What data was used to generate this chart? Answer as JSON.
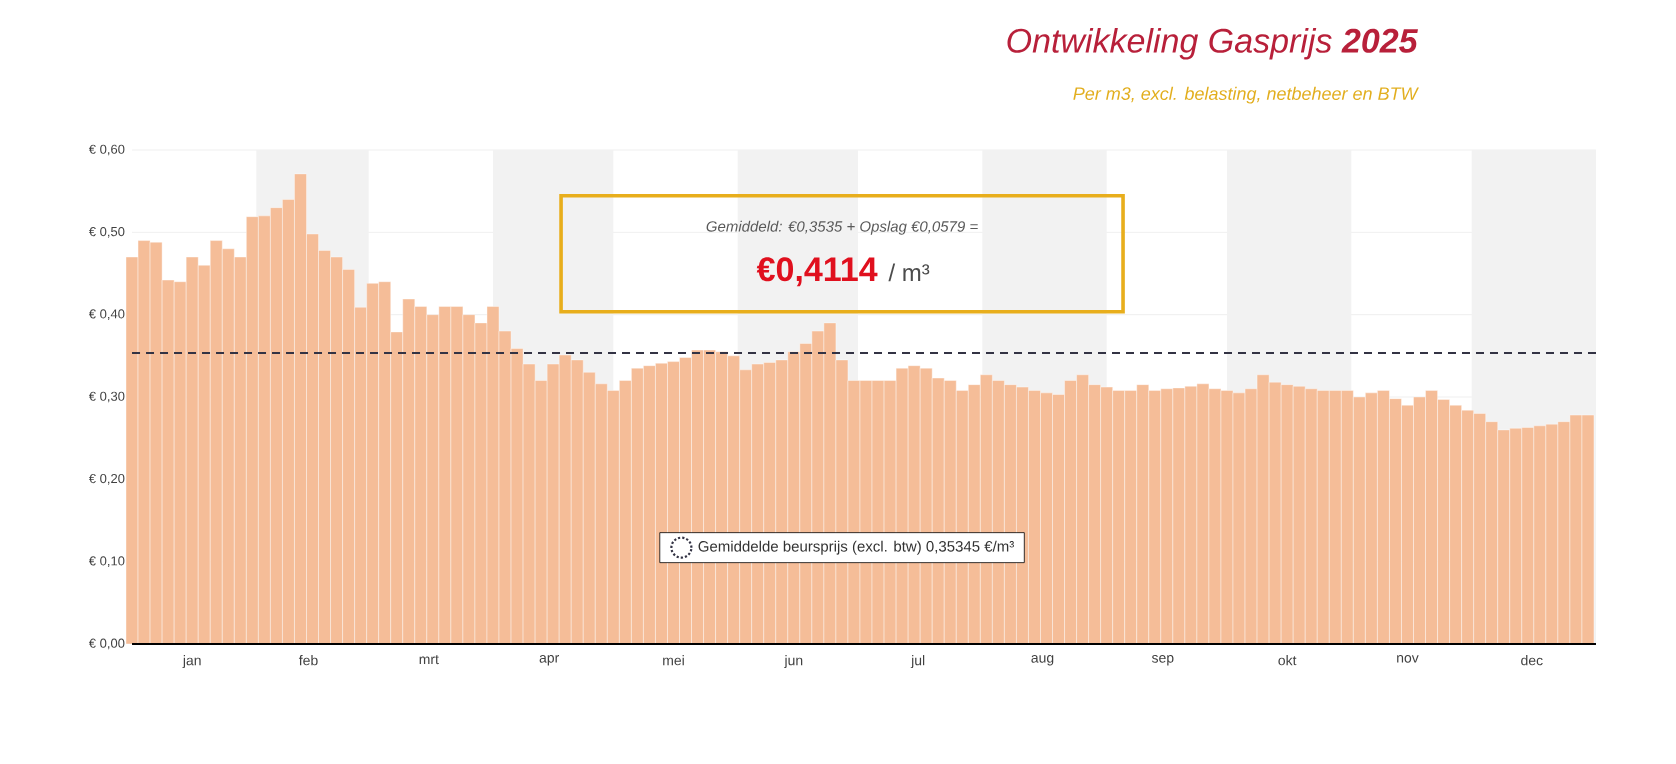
{
  "chart_data": {
    "type": "bar",
    "title": "Ontwikkeling Gasprijs **2025**",
    "subtitle": "Per m3, excl. belasting, netbeheer en BTW",
    "x": [
      "2025-01-01",
      "2025-01-04",
      "2025-01-07",
      "2025-01-10",
      "2025-01-13",
      "2025-01-16",
      "2025-01-19",
      "2025-01-22",
      "2025-01-25",
      "2025-01-28",
      "2025-01-31",
      "2025-02-03",
      "2025-02-06",
      "2025-02-09",
      "2025-02-12",
      "2025-02-15",
      "2025-02-18",
      "2025-02-21",
      "2025-02-24",
      "2025-02-27",
      "2025-03-02",
      "2025-03-05",
      "2025-03-08",
      "2025-03-11",
      "2025-03-14",
      "2025-03-17",
      "2025-03-20",
      "2025-03-23",
      "2025-03-26",
      "2025-03-29",
      "2025-04-01",
      "2025-04-04",
      "2025-04-07",
      "2025-04-10",
      "2025-04-13",
      "2025-04-16",
      "2025-04-19",
      "2025-04-22",
      "2025-04-25",
      "2025-04-28",
      "2025-05-01",
      "2025-05-04",
      "2025-05-07",
      "2025-05-10",
      "2025-05-13",
      "2025-05-16",
      "2025-05-19",
      "2025-05-22",
      "2025-05-25",
      "2025-05-28",
      "2025-05-31",
      "2025-06-03",
      "2025-06-06",
      "2025-06-09",
      "2025-06-12",
      "2025-06-15",
      "2025-06-18",
      "2025-06-21",
      "2025-06-24",
      "2025-06-27",
      "2025-06-30",
      "2025-07-03",
      "2025-07-06",
      "2025-07-09",
      "2025-07-12",
      "2025-07-15",
      "2025-07-18",
      "2025-07-21",
      "2025-07-24",
      "2025-07-27",
      "2025-07-30",
      "2025-08-02",
      "2025-08-05",
      "2025-08-08",
      "2025-08-11",
      "2025-08-14",
      "2025-08-17",
      "2025-08-20",
      "2025-08-23",
      "2025-08-26",
      "2025-08-29",
      "2025-09-01",
      "2025-09-04",
      "2025-09-07",
      "2025-09-10",
      "2025-09-13",
      "2025-09-16",
      "2025-09-19",
      "2025-09-22",
      "2025-09-25",
      "2025-09-28",
      "2025-10-01",
      "2025-10-04",
      "2025-10-07",
      "2025-10-10",
      "2025-10-13",
      "2025-10-16",
      "2025-10-19",
      "2025-10-22",
      "2025-10-25",
      "2025-10-28",
      "2025-10-31",
      "2025-11-03",
      "2025-11-06",
      "2025-11-09",
      "2025-11-12",
      "2025-11-15",
      "2025-11-18",
      "2025-11-21",
      "2025-11-24",
      "2025-11-27",
      "2025-11-30",
      "2025-12-03",
      "2025-12-06",
      "2025-12-09",
      "2025-12-12",
      "2025-12-15",
      "2025-12-18",
      "2025-12-21",
      "2025-12-24",
      "2025-12-27",
      "2025-12-30"
    ],
    "values": [
      0.47,
      0.49,
      0.488,
      0.442,
      0.44,
      0.47,
      0.46,
      0.49,
      0.48,
      0.47,
      0.519,
      0.52,
      0.53,
      0.54,
      0.571,
      0.498,
      0.478,
      0.47,
      0.455,
      0.409,
      0.438,
      0.44,
      0.379,
      0.419,
      0.41,
      0.4,
      0.41,
      0.41,
      0.4,
      0.39,
      0.41,
      0.38,
      0.359,
      0.34,
      0.32,
      0.34,
      0.351,
      0.345,
      0.33,
      0.316,
      0.308,
      0.32,
      0.335,
      0.338,
      0.341,
      0.343,
      0.348,
      0.357,
      0.357,
      0.355,
      0.35,
      0.333,
      0.34,
      0.342,
      0.345,
      0.355,
      0.365,
      0.38,
      0.39,
      0.345,
      0.32,
      0.32,
      0.32,
      0.32,
      0.335,
      0.338,
      0.335,
      0.323,
      0.32,
      0.308,
      0.315,
      0.327,
      0.32,
      0.315,
      0.312,
      0.308,
      0.305,
      0.303,
      0.32,
      0.327,
      0.315,
      0.312,
      0.308,
      0.308,
      0.315,
      0.308,
      0.31,
      0.311,
      0.313,
      0.316,
      0.31,
      0.308,
      0.305,
      0.31,
      0.327,
      0.318,
      0.315,
      0.313,
      0.31,
      0.308,
      0.308,
      0.308,
      0.3,
      0.305,
      0.308,
      0.298,
      0.29,
      0.3,
      0.308,
      0.297,
      0.29,
      0.284,
      0.28,
      0.27,
      0.26,
      0.262,
      0.263,
      0.265,
      0.267,
      0.27,
      0.278,
      0.278
    ],
    "color": "#f5bd98",
    "xlim": [
      "2025-01-01",
      "2026-01-01"
    ],
    "xticks": [
      {
        "value": "2025-01-16",
        "label": "jan"
      },
      {
        "value": "2025-02-14",
        "label": "feb"
      },
      {
        "value": "2025-03-16",
        "label": "mrt"
      },
      {
        "value": "2025-04-15",
        "label": "apr"
      },
      {
        "value": "2025-05-16",
        "label": "mei"
      },
      {
        "value": "2025-06-15",
        "label": "jun"
      },
      {
        "value": "2025-07-16",
        "label": "jul"
      },
      {
        "value": "2025-08-16",
        "label": "aug"
      },
      {
        "value": "2025-09-15",
        "label": "sep"
      },
      {
        "value": "2025-10-16",
        "label": "okt"
      },
      {
        "value": "2025-11-15",
        "label": "nov"
      },
      {
        "value": "2025-12-16",
        "label": "dec"
      }
    ],
    "ylim": [
      0,
      0.6
    ],
    "yticks": [
      {
        "value": 0,
        "label": "€ 0,00"
      },
      {
        "value": 0.1,
        "label": "€ 0,10"
      },
      {
        "value": 0.2,
        "label": "€ 0,20"
      },
      {
        "value": 0.3,
        "label": "€ 0,30"
      },
      {
        "value": 0.4,
        "label": "€ 0,40"
      },
      {
        "value": 0.5,
        "label": "€ 0,50"
      },
      {
        "value": 0.6,
        "label": "€ 0,60"
      }
    ],
    "grid": "y",
    "bands": [
      {
        "axis": "x",
        "from": "2025-02-01",
        "to": "2025-03-01",
        "color": "#f2f2f2"
      },
      {
        "axis": "x",
        "from": "2025-04-01",
        "to": "2025-05-01",
        "color": "#f2f2f2"
      },
      {
        "axis": "x",
        "from": "2025-06-01",
        "to": "2025-07-01",
        "color": "#f2f2f2"
      },
      {
        "axis": "x",
        "from": "2025-08-01",
        "to": "2025-09-01",
        "color": "#f2f2f2"
      },
      {
        "axis": "x",
        "from": "2025-10-01",
        "to": "2025-11-01",
        "color": "#f2f2f2"
      },
      {
        "axis": "x",
        "from": "2025-12-01",
        "to": "2026-01-01",
        "color": "#f2f2f2"
      }
    ],
    "ref_lines": [
      {
        "axis": "y",
        "value": 0.35345,
        "label": "Gemiddelde beursprijs (excl. btw)   0,35345 €/m³",
        "color": "#333344",
        "line_style": "dashed"
      }
    ],
    "annotations": [
      "Gemiddeld: €0,3535 + Opslag €0,0579 =",
      "€0,4114",
      "/ m³"
    ]
  }
}
